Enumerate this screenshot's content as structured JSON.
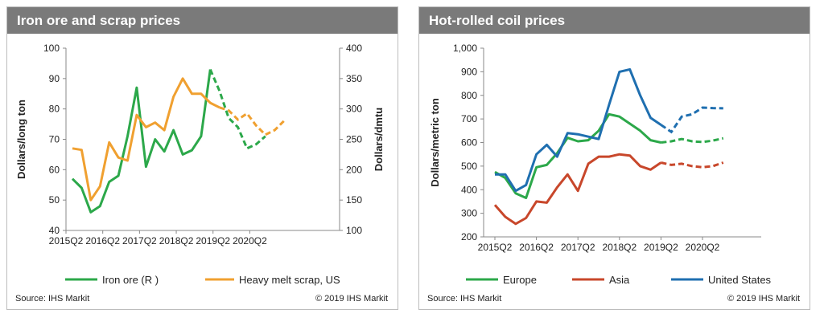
{
  "chart_data": [
    {
      "type": "line",
      "title": "Iron ore and scrap prices",
      "ylabel": "Dollars/long ton",
      "y2label": "Dollars/dmtu",
      "ylim": [
        40,
        100
      ],
      "y2lim": [
        100,
        400
      ],
      "yticks": [
        "40",
        "50",
        "60",
        "70",
        "80",
        "90",
        "100"
      ],
      "y2ticks": [
        "100",
        "150",
        "200",
        "250",
        "300",
        "350",
        "400"
      ],
      "xticks": [
        "2015Q2",
        "2016Q2",
        "2017Q2",
        "2018Q2",
        "2019Q2",
        "2020Q2"
      ],
      "x_start": "2015Q2",
      "series": [
        {
          "name": "Iron ore (R )",
          "axis": "right",
          "color": "#2ca84a",
          "actual": [
            185,
            170,
            130,
            140,
            180,
            190,
            255,
            335,
            205,
            250,
            230,
            265,
            225,
            232,
            255,
            365
          ],
          "forecast": [
            365,
            330,
            285,
            270,
            235,
            242,
            255
          ]
        },
        {
          "name": "Heavy melt scrap, US",
          "axis": "left",
          "color": "#f0a030",
          "actual": [
            67,
            66.5,
            50,
            54.5,
            69,
            64,
            63,
            78,
            74,
            75.5,
            73,
            84,
            90,
            85,
            85,
            82,
            80.5
          ],
          "forecast": [
            80.5,
            79.5,
            76.5,
            78.5,
            74.5,
            71.5,
            73,
            76
          ]
        }
      ],
      "legend": [
        "Iron ore (R )",
        "Heavy melt scrap, US"
      ],
      "source": "Source: IHS Markit",
      "copyright": "© 2019 IHS Markit"
    },
    {
      "type": "line",
      "title": "Hot-rolled coil prices",
      "ylabel": "Dollars/metric ton",
      "ylim": [
        200,
        1000
      ],
      "yticks": [
        "200",
        "300",
        "400",
        "500",
        "600",
        "700",
        "800",
        "900",
        "1,000"
      ],
      "xticks": [
        "2015Q2",
        "2016Q2",
        "2017Q2",
        "2018Q2",
        "2019Q2",
        "2020Q2"
      ],
      "x_start": "2015Q2",
      "series": [
        {
          "name": "Europe",
          "color": "#2ca84a",
          "actual": [
            475,
            450,
            385,
            365,
            495,
            505,
            555,
            620,
            605,
            610,
            650,
            720,
            710,
            680,
            650,
            610,
            600
          ],
          "forecast": [
            600,
            605,
            615,
            605,
            602,
            608,
            618
          ]
        },
        {
          "name": "Asia",
          "color": "#c8472b",
          "actual": [
            335,
            285,
            255,
            280,
            350,
            345,
            410,
            465,
            395,
            510,
            540,
            540,
            550,
            545,
            500,
            485,
            515
          ],
          "forecast": [
            515,
            505,
            510,
            500,
            495,
            500,
            515
          ]
        },
        {
          "name": "United States",
          "color": "#1f6fb0",
          "actual": [
            465,
            465,
            395,
            420,
            550,
            590,
            540,
            640,
            635,
            625,
            615,
            760,
            900,
            910,
            800,
            705,
            675
          ],
          "forecast": [
            675,
            645,
            710,
            720,
            748,
            746,
            745
          ]
        }
      ],
      "legend": [
        "Europe",
        "Asia",
        "United States"
      ],
      "source": "Source: IHS Markit",
      "copyright": "© 2019 IHS Markit"
    }
  ]
}
